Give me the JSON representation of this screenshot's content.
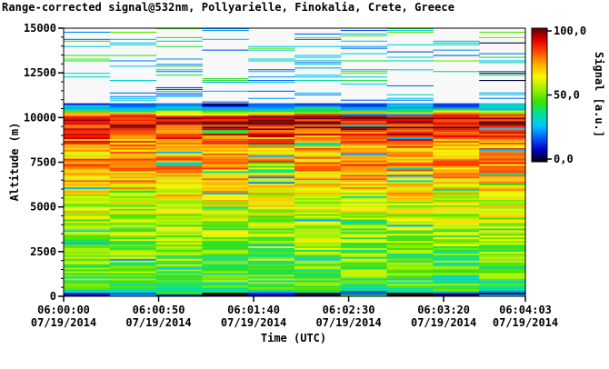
{
  "chart_data": {
    "type": "heatmap",
    "title": "Range-corrected signal@532nm, Pollyarielle, Finokalia, Crete, Greece",
    "xlabel": "Time (UTC)",
    "ylabel": "Altitude (m)",
    "colorbar_label": "Signal [a.u.]",
    "ylim": [
      0,
      15000
    ],
    "y_ticks": [
      "0",
      "2500",
      "5000",
      "7500",
      "10000",
      "12500",
      "15000"
    ],
    "x_ticks": [
      {
        "time": "06:00:00",
        "date": "07/19/2014"
      },
      {
        "time": "06:00:50",
        "date": "07/19/2014"
      },
      {
        "time": "06:01:40",
        "date": "07/19/2014"
      },
      {
        "time": "06:02:30",
        "date": "07/19/2014"
      },
      {
        "time": "06:03:20",
        "date": "07/19/2014"
      },
      {
        "time": "06:04:03",
        "date": "07/19/2014"
      }
    ],
    "colorbar_ticks": [
      "100,0",
      "50,0",
      "0,0"
    ],
    "colorbar_range": [
      0,
      100
    ],
    "colormap": [
      "#000000",
      "#0000c8",
      "#0060ff",
      "#00c8ff",
      "#00e090",
      "#40e000",
      "#a0f000",
      "#f8f800",
      "#ffb000",
      "#ff5000",
      "#e00000",
      "#600000"
    ],
    "time_profiles": 10,
    "altitude_profile_signal": [
      {
        "alt": 0,
        "signal": 3
      },
      {
        "alt": 150,
        "signal": 8
      },
      {
        "alt": 300,
        "signal": 42
      },
      {
        "alt": 1000,
        "signal": 46
      },
      {
        "alt": 2000,
        "signal": 48
      },
      {
        "alt": 3000,
        "signal": 52
      },
      {
        "alt": 4000,
        "signal": 55
      },
      {
        "alt": 5000,
        "signal": 60
      },
      {
        "alt": 6000,
        "signal": 66
      },
      {
        "alt": 7000,
        "signal": 72
      },
      {
        "alt": 7500,
        "signal": 78
      },
      {
        "alt": 8000,
        "signal": 70
      },
      {
        "alt": 9000,
        "signal": 82
      },
      {
        "alt": 9500,
        "signal": 90
      },
      {
        "alt": 10000,
        "signal": 95
      },
      {
        "alt": 10500,
        "signal": 30
      },
      {
        "alt": 11000,
        "signal": 0
      },
      {
        "alt": 15000,
        "signal": 0
      }
    ]
  }
}
